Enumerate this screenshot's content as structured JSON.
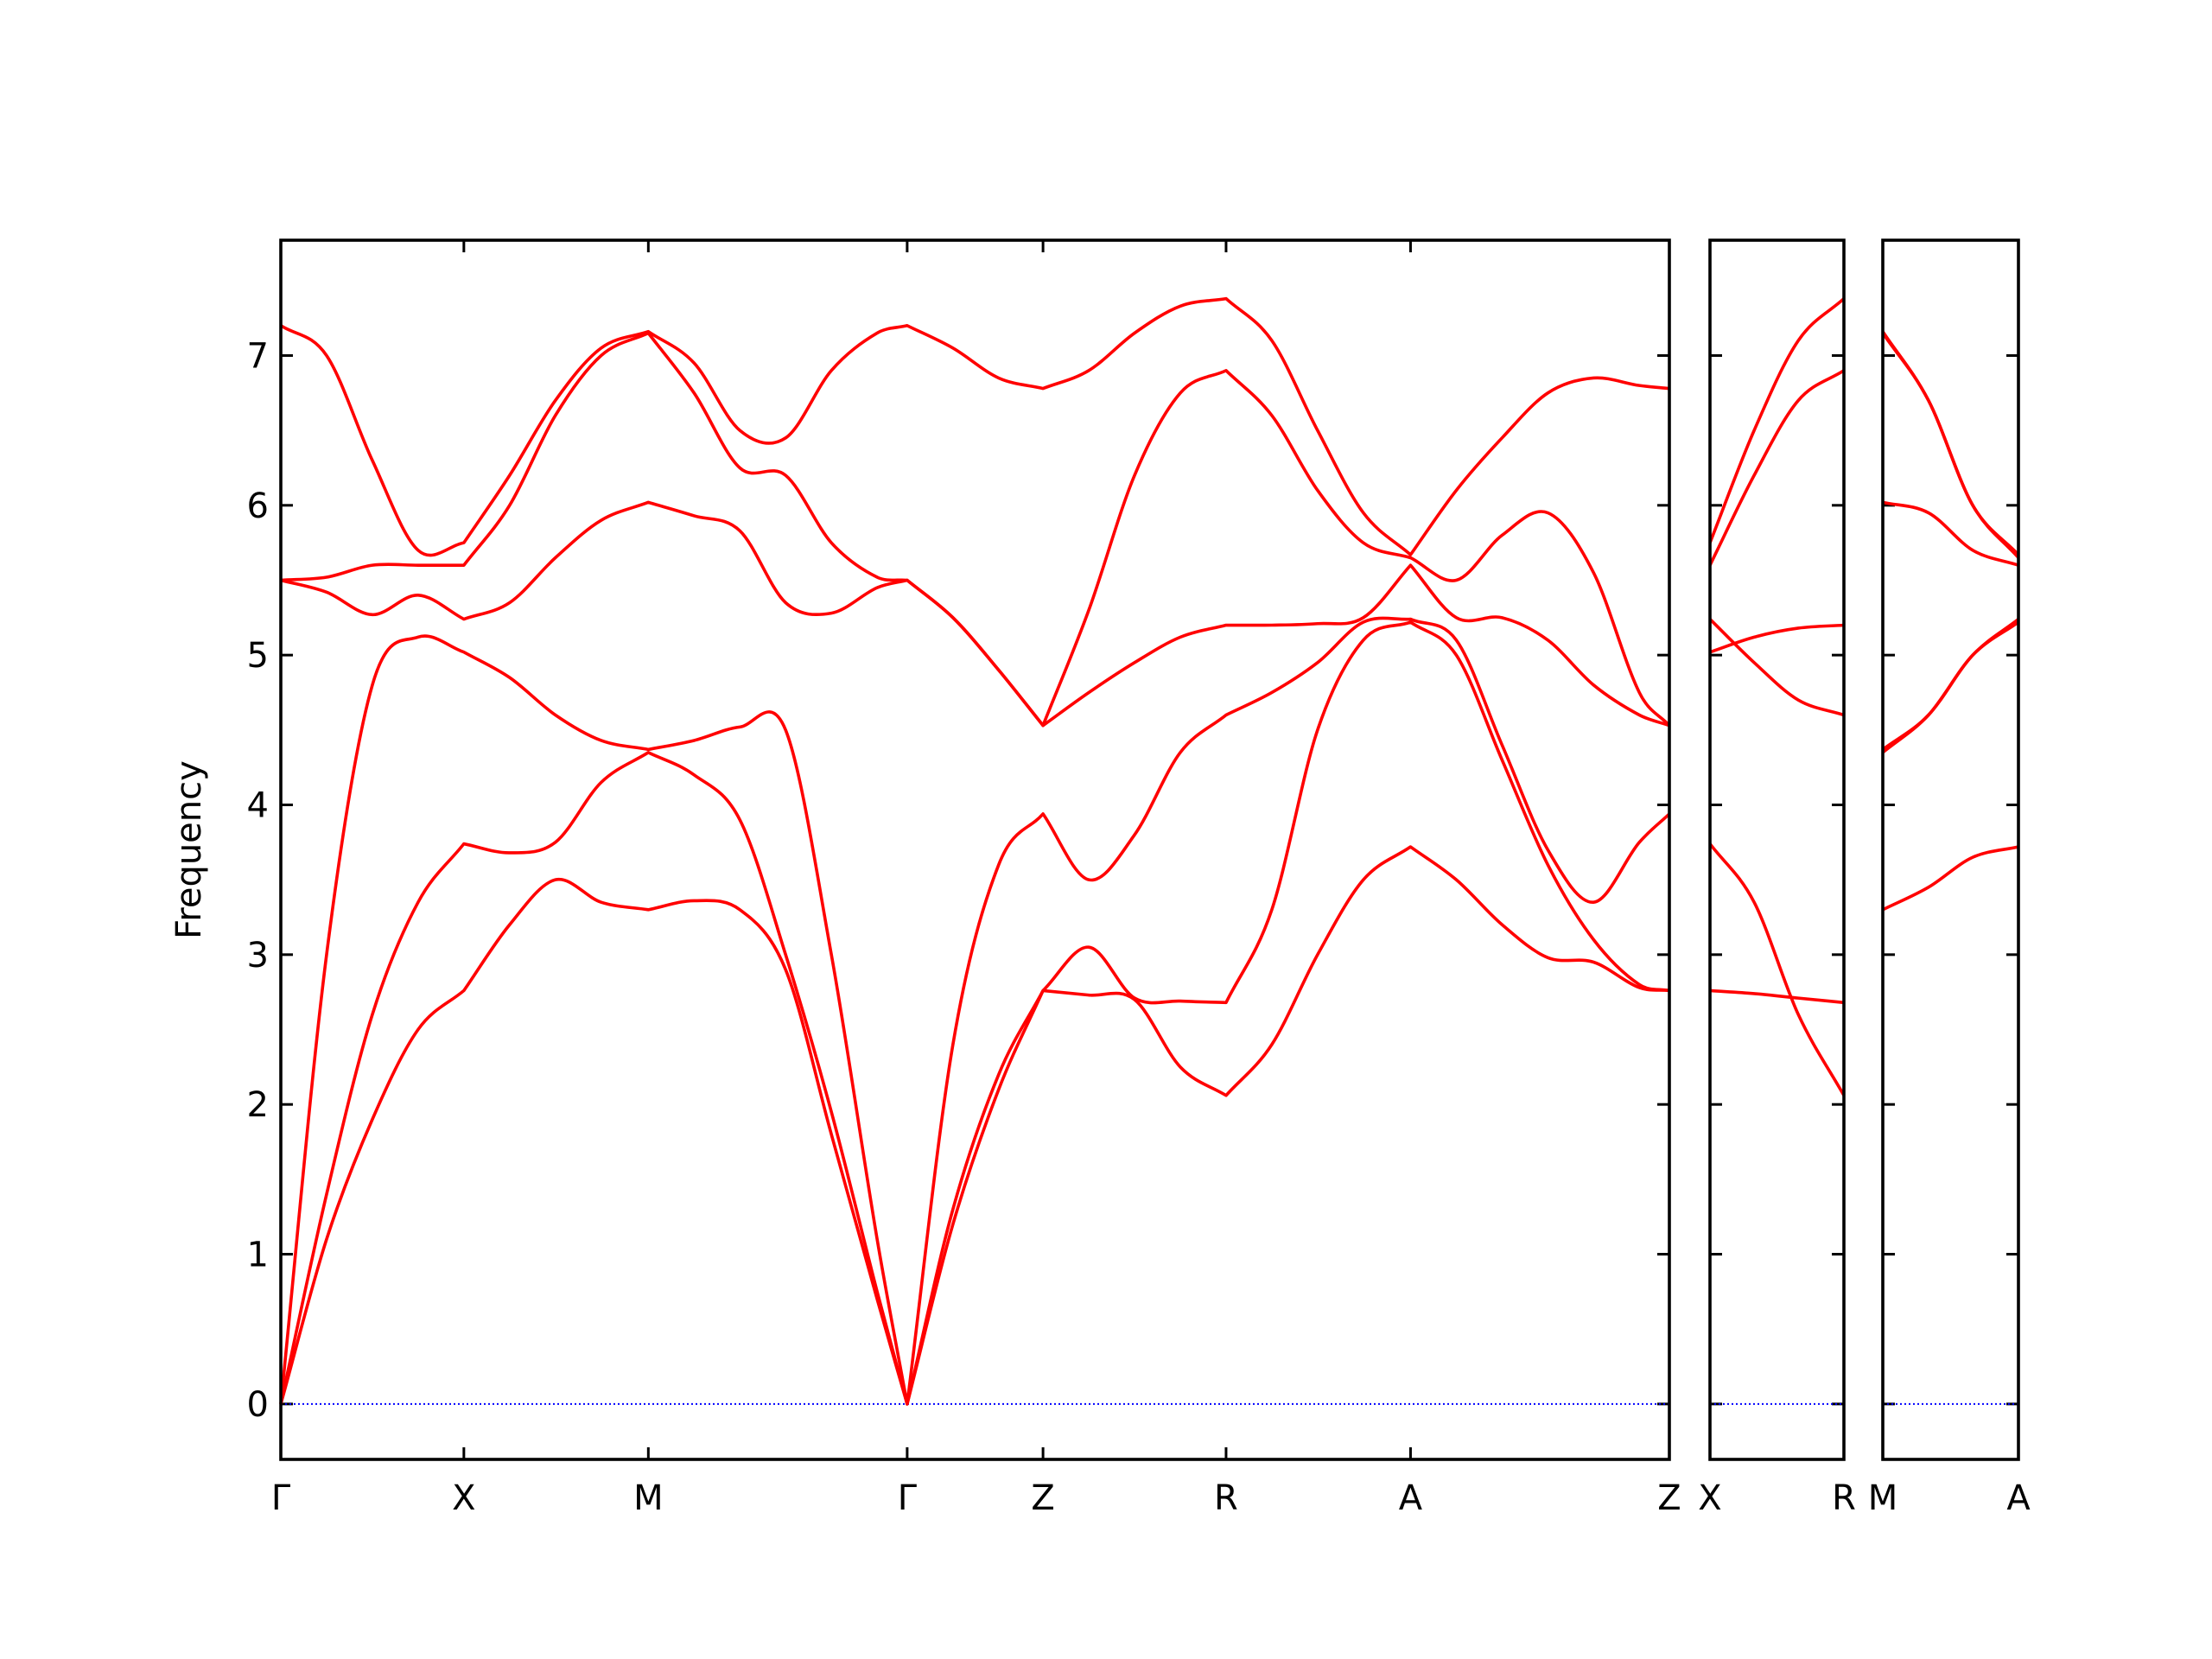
{
  "chart_data": [
    {
      "type": "line",
      "y_label": "Frequency",
      "x": [
        0,
        0.32,
        0.64,
        0.96,
        1.28,
        1.6,
        1.92,
        2.24,
        2.57,
        2.89,
        3.21,
        3.53,
        3.85,
        4.17,
        4.38,
        4.7,
        5.02,
        5.33,
        5.65,
        5.97,
        6.29,
        6.61,
        6.93,
        7.25,
        7.57,
        7.9,
        8.22,
        8.54,
        8.86,
        9.18,
        9.5,
        9.71
      ],
      "xlim": [
        0,
        9.71
      ],
      "xticks": [
        {
          "value": 0,
          "label": "Γ"
        },
        {
          "value": 1.28,
          "label": "X"
        },
        {
          "value": 2.57,
          "label": "M"
        },
        {
          "value": 4.38,
          "label": "Γ"
        },
        {
          "value": 5.33,
          "label": "Z"
        },
        {
          "value": 6.61,
          "label": "R"
        },
        {
          "value": 7.9,
          "label": "A"
        },
        {
          "value": 9.71,
          "label": "Z"
        }
      ],
      "ylim": [
        -0.37,
        7.77
      ],
      "yticks": [
        0,
        1,
        2,
        3,
        4,
        5,
        6,
        7
      ],
      "zero_line": {
        "value": 0,
        "color": "#0000ff"
      },
      "series": [
        {
          "color": "#ff0000",
          "values": [
            0,
            1.1,
            1.9,
            2.5,
            2.76,
            3.2,
            3.5,
            3.35,
            3.3,
            3.36,
            3.3,
            2.9,
            1.8,
            0.7,
            0,
            1.2,
            2.1,
            2.76,
            2.73,
            2.7,
            2.25,
            2.06,
            2.4,
            3.0,
            3.5,
            3.72,
            3.5,
            3.2,
            2.98,
            2.95,
            2.78,
            2.76
          ]
        },
        {
          "color": "#ff0000",
          "values": [
            0,
            1.4,
            2.6,
            3.35,
            3.74,
            3.68,
            3.75,
            4.15,
            4.35,
            4.2,
            3.9,
            3.0,
            1.95,
            0.75,
            0,
            1.3,
            2.2,
            2.76,
            3.05,
            2.71,
            2.69,
            2.68,
            3.3,
            4.5,
            5.1,
            5.22,
            5.0,
            4.3,
            3.6,
            3.1,
            2.8,
            2.76
          ]
        },
        {
          "color": "#ff0000",
          "values": [
            0,
            3.0,
            4.8,
            5.12,
            5.02,
            4.85,
            4.6,
            4.43,
            4.37,
            4.43,
            4.52,
            4.5,
            3.0,
            1.1,
            0,
            2.4,
            3.6,
            3.94,
            3.5,
            3.8,
            4.35,
            4.6,
            4.75,
            4.95,
            5.22,
            5.24,
            5.1,
            4.4,
            3.7,
            3.35,
            3.75,
            3.94
          ]
        },
        {
          "color": "#ff0000",
          "values": [
            5.5,
            5.42,
            5.27,
            5.4,
            5.24,
            5.35,
            5.65,
            5.9,
            6.02,
            5.93,
            5.83,
            5.35,
            5.28,
            5.45,
            5.5,
            5.25,
            4.9,
            4.53,
            4.75,
            4.95,
            5.12,
            5.2,
            5.2,
            5.21,
            5.25,
            5.6,
            5.25,
            5.25,
            5.1,
            4.8,
            4.6,
            4.53
          ]
        },
        {
          "color": "#ff0000",
          "values": [
            5.5,
            5.52,
            5.6,
            5.6,
            5.6,
            6.0,
            6.6,
            7.0,
            7.15,
            6.75,
            6.25,
            6.2,
            5.75,
            5.52,
            5.5,
            5.25,
            4.9,
            4.53,
            5.3,
            6.2,
            6.75,
            6.9,
            6.6,
            6.1,
            5.75,
            5.65,
            5.5,
            5.8,
            5.95,
            5.55,
            4.75,
            4.53
          ]
        },
        {
          "color": "#ff0000",
          "values": [
            7.2,
            7.0,
            6.3,
            5.7,
            5.75,
            6.2,
            6.7,
            7.05,
            7.16,
            6.95,
            6.5,
            6.45,
            6.9,
            7.15,
            7.2,
            7.05,
            6.85,
            6.78,
            6.9,
            7.15,
            7.33,
            7.38,
            7.1,
            6.5,
            5.95,
            5.67,
            6.1,
            6.45,
            6.75,
            6.85,
            6.8,
            6.78
          ]
        }
      ]
    },
    {
      "type": "line",
      "x": [
        0,
        0.31,
        0.62,
        0.94
      ],
      "xlim": [
        0,
        0.94
      ],
      "xticks": [
        {
          "value": 0,
          "label": "X"
        },
        {
          "value": 0.94,
          "label": "R"
        }
      ],
      "ylim": [
        -0.37,
        7.77
      ],
      "zero_line": {
        "value": 0,
        "color": "#0000ff"
      },
      "series": [
        {
          "color": "#ff0000",
          "values": [
            2.76,
            2.74,
            2.71,
            2.68
          ]
        },
        {
          "color": "#ff0000",
          "values": [
            3.74,
            3.35,
            2.6,
            2.06
          ]
        },
        {
          "color": "#ff0000",
          "values": [
            5.02,
            5.12,
            5.18,
            5.2
          ]
        },
        {
          "color": "#ff0000",
          "values": [
            5.24,
            4.95,
            4.7,
            4.6
          ]
        },
        {
          "color": "#ff0000",
          "values": [
            5.6,
            6.2,
            6.7,
            6.9
          ]
        },
        {
          "color": "#ff0000",
          "values": [
            5.75,
            6.5,
            7.1,
            7.38
          ]
        }
      ]
    },
    {
      "type": "line",
      "x": [
        0,
        0.32,
        0.63,
        0.95
      ],
      "xlim": [
        0,
        0.95
      ],
      "xticks": [
        {
          "value": 0,
          "label": "M"
        },
        {
          "value": 0.95,
          "label": "A"
        }
      ],
      "ylim": [
        -0.37,
        7.77
      ],
      "zero_line": {
        "value": 0,
        "color": "#0000ff"
      },
      "series": [
        {
          "color": "#ff0000",
          "values": [
            3.3,
            3.45,
            3.65,
            3.72
          ]
        },
        {
          "color": "#ff0000",
          "values": [
            4.35,
            4.6,
            5.0,
            5.22
          ]
        },
        {
          "color": "#ff0000",
          "values": [
            4.37,
            4.6,
            5.0,
            5.24
          ]
        },
        {
          "color": "#ff0000",
          "values": [
            6.02,
            5.95,
            5.7,
            5.6
          ]
        },
        {
          "color": "#ff0000",
          "values": [
            7.15,
            6.7,
            6.0,
            5.65
          ]
        },
        {
          "color": "#ff0000",
          "values": [
            7.16,
            6.7,
            6.0,
            5.67
          ]
        }
      ]
    }
  ]
}
